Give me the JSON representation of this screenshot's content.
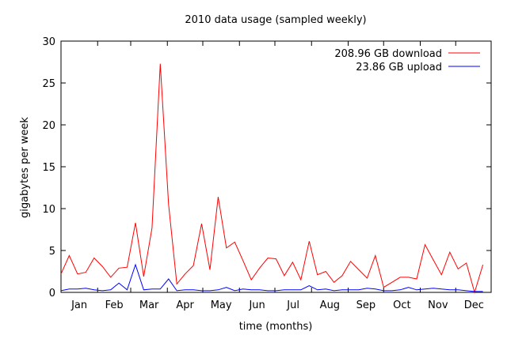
{
  "chart_data": {
    "type": "line",
    "title": "2010 data usage (sampled weekly)",
    "xlabel": "time (months)",
    "ylabel": "gigabytes per week",
    "ylim": [
      0,
      30
    ],
    "yticks": [
      0,
      5,
      10,
      15,
      20,
      25,
      30
    ],
    "xlim_weeks": [
      1,
      53
    ],
    "months": [
      "Jan",
      "Feb",
      "Mar",
      "Apr",
      "May",
      "Jun",
      "Jul",
      "Aug",
      "Sep",
      "Oct",
      "Nov",
      "Dec"
    ],
    "legend_position": "top-right",
    "grid": false,
    "series": [
      {
        "name": "208.96 GB download",
        "color": "#ff0000",
        "values": [
          2.2,
          4.4,
          2.2,
          2.4,
          4.1,
          3.1,
          1.8,
          2.9,
          3.0,
          8.3,
          1.9,
          7.7,
          27.3,
          10.5,
          1.0,
          2.2,
          3.2,
          8.2,
          2.7,
          11.4,
          5.3,
          6.0,
          3.8,
          1.5,
          2.9,
          4.1,
          4.0,
          2.0,
          3.6,
          1.5,
          6.1,
          2.1,
          2.5,
          1.2,
          2.0,
          3.7,
          2.7,
          1.7,
          4.4,
          0.6,
          1.2,
          1.8,
          1.8,
          1.6,
          5.7,
          3.9,
          2.1,
          4.8,
          2.8,
          3.5,
          0.0,
          3.3
        ]
      },
      {
        "name": "23.86 GB upload",
        "color": "#0000ff",
        "values": [
          0.2,
          0.4,
          0.4,
          0.5,
          0.3,
          0.2,
          0.3,
          1.1,
          0.3,
          3.3,
          0.3,
          0.4,
          0.4,
          1.6,
          0.2,
          0.3,
          0.3,
          0.2,
          0.2,
          0.3,
          0.6,
          0.2,
          0.4,
          0.3,
          0.3,
          0.2,
          0.2,
          0.3,
          0.3,
          0.3,
          0.8,
          0.3,
          0.4,
          0.2,
          0.3,
          0.3,
          0.3,
          0.5,
          0.4,
          0.2,
          0.2,
          0.3,
          0.6,
          0.3,
          0.4,
          0.5,
          0.4,
          0.3,
          0.3,
          0.2,
          0.1,
          0.1
        ]
      }
    ]
  }
}
